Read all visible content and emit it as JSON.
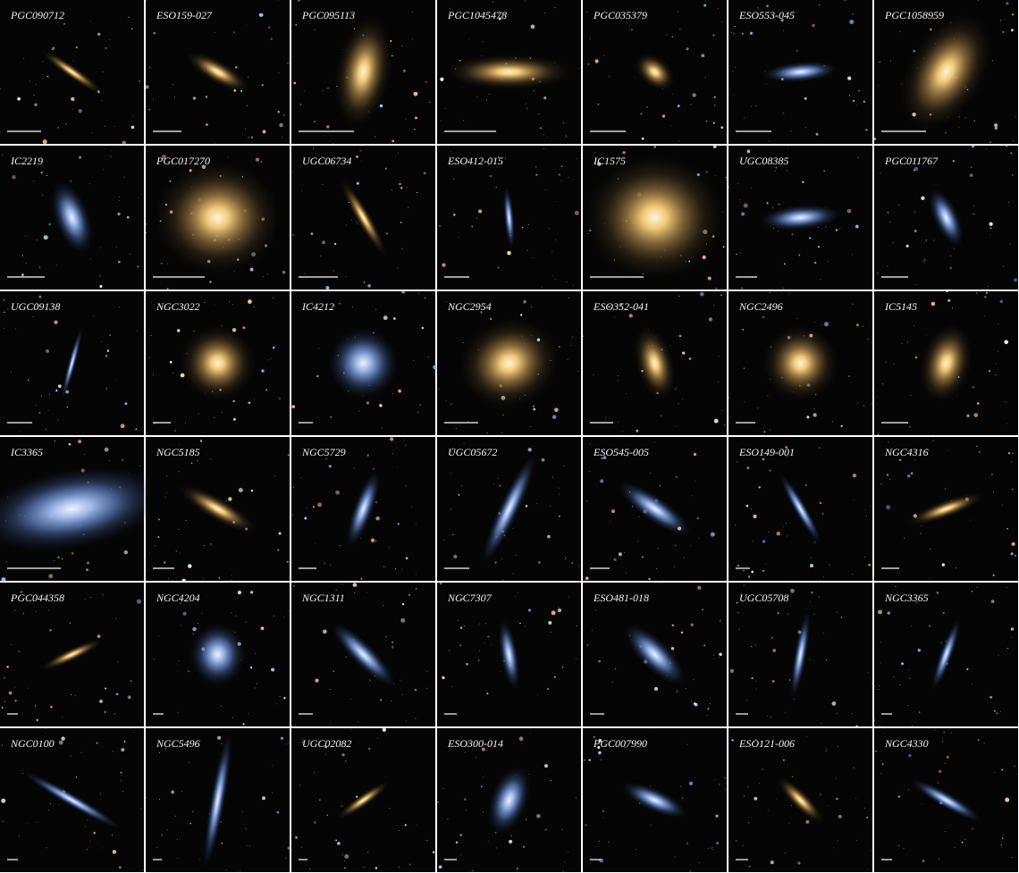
{
  "galaxies": [
    {
      "name": "PGC090712"
    },
    {
      "name": "ESO159-027"
    },
    {
      "name": "PGC095113"
    },
    {
      "name": "PGC1045478"
    },
    {
      "name": "PGC035379"
    },
    {
      "name": "ESO553-045"
    },
    {
      "name": "PGC1058959"
    },
    {
      "name": "IC2219"
    },
    {
      "name": "PGC017270"
    },
    {
      "name": "UGC06734"
    },
    {
      "name": "ESO412-015"
    },
    {
      "name": "IC1575"
    },
    {
      "name": "UGC08385"
    },
    {
      "name": "PGC011767"
    },
    {
      "name": "UGC09138"
    },
    {
      "name": "NGC3022"
    },
    {
      "name": "IC4212"
    },
    {
      "name": "NGC2954"
    },
    {
      "name": "ESO352-041"
    },
    {
      "name": "NGC2496"
    },
    {
      "name": "IC5145"
    },
    {
      "name": "IC3365"
    },
    {
      "name": "NGC5185"
    },
    {
      "name": "NGC5729"
    },
    {
      "name": "UGC05672"
    },
    {
      "name": "ESO545-005"
    },
    {
      "name": "ESO149-001"
    },
    {
      "name": "NGC4316"
    },
    {
      "name": "PGC044358"
    },
    {
      "name": "NGC4204"
    },
    {
      "name": "NGC1311"
    },
    {
      "name": "NGC7307"
    },
    {
      "name": "ESO481-018"
    },
    {
      "name": "UGC05708"
    },
    {
      "name": "NGC3365"
    },
    {
      "name": "NGC0100"
    },
    {
      "name": "NGC5496"
    },
    {
      "name": "UGC02082"
    },
    {
      "name": "ESO300-014"
    },
    {
      "name": "PGC007990"
    },
    {
      "name": "ESO121-006"
    },
    {
      "name": "NGC4330"
    }
  ]
}
